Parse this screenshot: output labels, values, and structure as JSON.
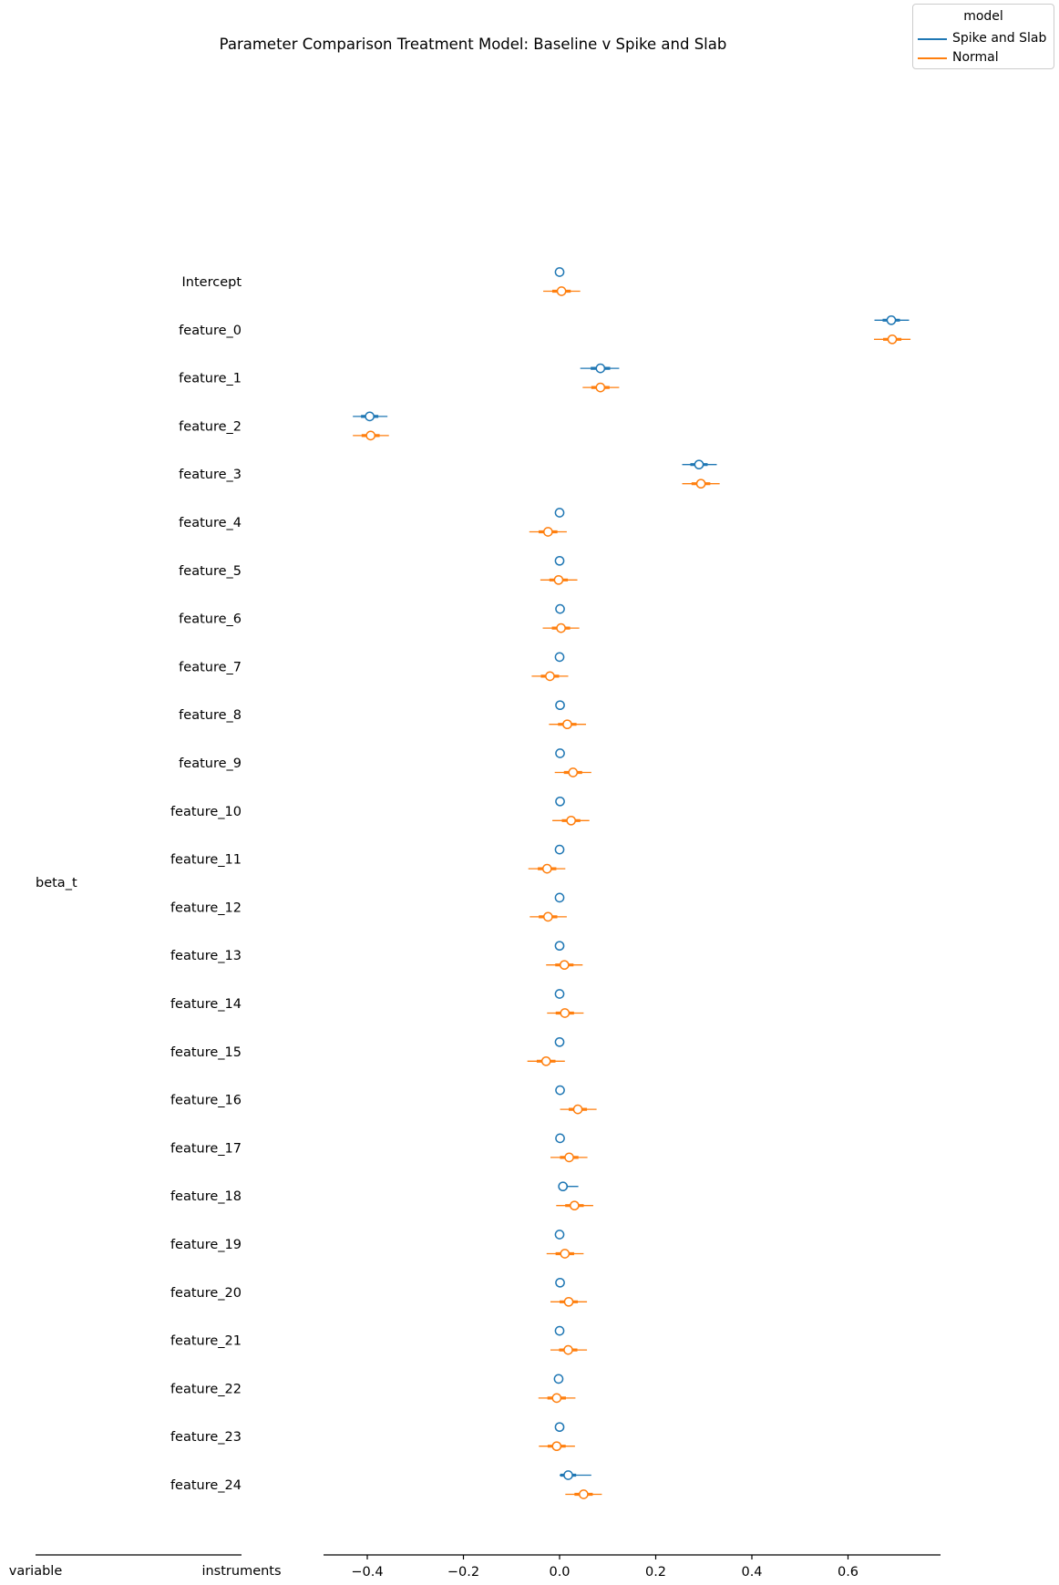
{
  "chart_data": {
    "type": "forest",
    "title": "Parameter Comparison Treatment Model: Baseline v Spike and Slab",
    "group_label": "beta_t",
    "left_axis_labels": [
      "variable",
      "instruments"
    ],
    "x_ticks": [
      -0.4,
      -0.2,
      0.0,
      0.2,
      0.4,
      0.6
    ],
    "x_tick_labels": [
      "−0.4",
      "−0.2",
      "0.0",
      "0.2",
      "0.4",
      "0.6"
    ],
    "xlim": [
      -0.5,
      0.79
    ],
    "legend": {
      "title": "model",
      "placement": "top-right"
    },
    "colors": {
      "Spike and Slab": "#1f77b4",
      "Normal": "#ff7f0e"
    },
    "categories": [
      "Intercept",
      "feature_0",
      "feature_1",
      "feature_2",
      "feature_3",
      "feature_4",
      "feature_5",
      "feature_6",
      "feature_7",
      "feature_8",
      "feature_9",
      "feature_10",
      "feature_11",
      "feature_12",
      "feature_13",
      "feature_14",
      "feature_15",
      "feature_16",
      "feature_17",
      "feature_18",
      "feature_19",
      "feature_20",
      "feature_21",
      "feature_22",
      "feature_23",
      "feature_24"
    ],
    "series": [
      {
        "name": "Spike and Slab",
        "mean": [
          0.0,
          0.69,
          0.085,
          -0.395,
          0.29,
          0.0,
          0.0,
          0.001,
          0.0,
          0.001,
          0.001,
          0.001,
          0.0,
          0.0,
          0.0,
          0.0,
          0.0,
          0.001,
          0.001,
          0.007,
          0.0,
          0.001,
          0.0,
          -0.002,
          0.0,
          0.018
        ],
        "hdi_low": [
          0.0,
          0.655,
          0.043,
          -0.43,
          0.255,
          0.0,
          0.0,
          0.0,
          0.0,
          0.0,
          0.0,
          0.0,
          0.0,
          0.0,
          0.0,
          0.0,
          0.0,
          0.0,
          0.0,
          0.0,
          0.0,
          0.0,
          0.0,
          -0.006,
          0.0,
          0.0
        ],
        "hdi_high": [
          0.0,
          0.727,
          0.124,
          -0.358,
          0.327,
          0.0,
          0.0,
          0.0,
          0.0,
          0.0,
          0.0,
          0.0,
          0.0,
          0.0,
          0.0,
          0.0,
          0.0,
          0.0,
          0.0,
          0.039,
          0.0,
          0.0,
          0.0,
          0.0,
          0.0,
          0.066
        ]
      },
      {
        "name": "Normal",
        "mean": [
          0.004,
          0.692,
          0.085,
          -0.393,
          0.294,
          -0.024,
          -0.002,
          0.003,
          -0.02,
          0.016,
          0.028,
          0.024,
          -0.026,
          -0.024,
          0.01,
          0.011,
          -0.028,
          0.038,
          0.02,
          0.031,
          0.011,
          0.019,
          0.018,
          -0.006,
          -0.006,
          0.05
        ],
        "hdi_low": [
          -0.034,
          0.654,
          0.048,
          -0.43,
          0.255,
          -0.063,
          -0.04,
          -0.035,
          -0.058,
          -0.022,
          -0.01,
          -0.015,
          -0.065,
          -0.062,
          -0.028,
          -0.026,
          -0.067,
          0.001,
          -0.019,
          -0.007,
          -0.027,
          -0.019,
          -0.019,
          -0.044,
          -0.043,
          0.012
        ],
        "hdi_high": [
          0.043,
          0.73,
          0.124,
          -0.355,
          0.333,
          0.015,
          0.037,
          0.041,
          0.018,
          0.055,
          0.066,
          0.062,
          0.012,
          0.015,
          0.048,
          0.05,
          0.011,
          0.077,
          0.058,
          0.07,
          0.05,
          0.057,
          0.057,
          0.033,
          0.032,
          0.088
        ]
      }
    ]
  }
}
